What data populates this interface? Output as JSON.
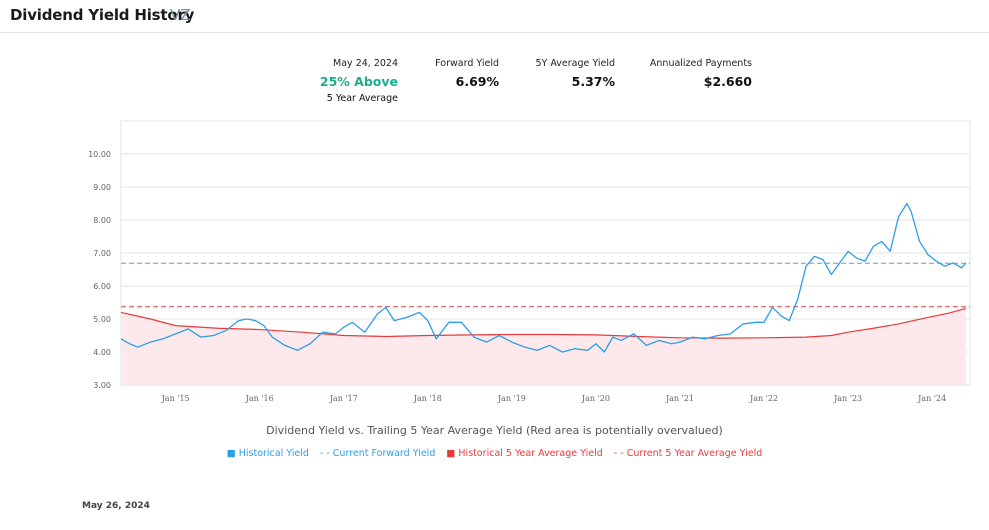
{
  "header": {
    "title": "Dividend Yield History",
    "ticker": "VZ"
  },
  "stats": {
    "date": "May 24, 2024",
    "above_value": "25% Above",
    "above_sub": "5 Year Average",
    "forward_label": "Forward Yield",
    "forward_value": "6.69%",
    "avg_label": "5Y Average Yield",
    "avg_value": "5.37%",
    "payments_label": "Annualized Payments",
    "payments_value": "$2.660"
  },
  "caption": "Dividend Yield vs. Trailing 5 Year Average Yield (Red area is potentially overvalued)",
  "legend": {
    "historical": "Historical Yield",
    "current_forward": "- - Current Forward Yield",
    "hist_avg": "Historical 5 Year Average Yield",
    "current_avg": "- - Current 5 Year Average Yield"
  },
  "footer_date": "May 26, 2024",
  "colors": {
    "historical": "#2b9fe6",
    "average": "#e43b3b",
    "fill": "#fde8ec",
    "forward_line": "#5b9be6"
  },
  "chart_data": {
    "type": "line",
    "ylim": [
      3.0,
      11.0
    ],
    "yticks": [
      "3.00",
      "4.00",
      "5.00",
      "6.00",
      "7.00",
      "8.00",
      "9.00",
      "10.00"
    ],
    "xlim": [
      2014.35,
      2024.45
    ],
    "xticks": [
      {
        "label": "Jan '15",
        "x": 2015.0
      },
      {
        "label": "Jan '16",
        "x": 2016.0
      },
      {
        "label": "Jan '17",
        "x": 2017.0
      },
      {
        "label": "Jan '18",
        "x": 2018.0
      },
      {
        "label": "Jan '19",
        "x": 2019.0
      },
      {
        "label": "Jan '20",
        "x": 2020.0
      },
      {
        "label": "Jan '21",
        "x": 2021.0
      },
      {
        "label": "Jan '22",
        "x": 2022.0
      },
      {
        "label": "Jan '23",
        "x": 2023.0
      },
      {
        "label": "Jan '24",
        "x": 2024.0
      }
    ],
    "current_forward_yield": 6.69,
    "current_5y_avg_yield": 5.37,
    "series": [
      {
        "name": "Historical Yield",
        "x": [
          2014.35,
          2014.45,
          2014.55,
          2014.7,
          2014.85,
          2015.0,
          2015.15,
          2015.3,
          2015.45,
          2015.6,
          2015.75,
          2015.85,
          2015.95,
          2016.05,
          2016.15,
          2016.3,
          2016.45,
          2016.6,
          2016.75,
          2016.9,
          2017.0,
          2017.1,
          2017.25,
          2017.4,
          2017.5,
          2017.6,
          2017.75,
          2017.9,
          2018.0,
          2018.1,
          2018.25,
          2018.4,
          2018.55,
          2018.7,
          2018.85,
          2019.0,
          2019.15,
          2019.3,
          2019.45,
          2019.6,
          2019.75,
          2019.9,
          2020.0,
          2020.1,
          2020.2,
          2020.3,
          2020.45,
          2020.6,
          2020.75,
          2020.9,
          2021.0,
          2021.15,
          2021.3,
          2021.45,
          2021.6,
          2021.75,
          2021.9,
          2022.0,
          2022.1,
          2022.2,
          2022.3,
          2022.4,
          2022.5,
          2022.6,
          2022.7,
          2022.8,
          2022.9,
          2023.0,
          2023.1,
          2023.2,
          2023.3,
          2023.4,
          2023.5,
          2023.6,
          2023.7,
          2023.75,
          2023.85,
          2023.95,
          2024.05,
          2024.15,
          2024.25,
          2024.35,
          2024.4
        ],
        "y": [
          4.4,
          4.25,
          4.15,
          4.3,
          4.4,
          4.55,
          4.7,
          4.45,
          4.5,
          4.65,
          4.95,
          5.0,
          4.95,
          4.8,
          4.45,
          4.2,
          4.05,
          4.25,
          4.6,
          4.55,
          4.75,
          4.9,
          4.6,
          5.15,
          5.35,
          4.95,
          5.05,
          5.2,
          4.95,
          4.4,
          4.9,
          4.9,
          4.45,
          4.3,
          4.5,
          4.3,
          4.15,
          4.05,
          4.2,
          4.0,
          4.1,
          4.05,
          4.25,
          4.0,
          4.45,
          4.35,
          4.55,
          4.2,
          4.35,
          4.25,
          4.3,
          4.45,
          4.4,
          4.5,
          4.55,
          4.85,
          4.9,
          4.9,
          5.35,
          5.1,
          4.95,
          5.6,
          6.6,
          6.9,
          6.8,
          6.35,
          6.7,
          7.05,
          6.85,
          6.75,
          7.2,
          7.35,
          7.05,
          8.1,
          8.5,
          8.25,
          7.35,
          6.95,
          6.75,
          6.6,
          6.7,
          6.55,
          6.7
        ]
      },
      {
        "name": "Historical 5 Year Average Yield",
        "x": [
          2014.35,
          2014.7,
          2015.0,
          2015.5,
          2016.0,
          2016.5,
          2017.0,
          2017.5,
          2018.0,
          2018.5,
          2019.0,
          2019.5,
          2020.0,
          2020.5,
          2021.0,
          2021.5,
          2022.0,
          2022.5,
          2022.8,
          2023.0,
          2023.3,
          2023.6,
          2023.9,
          2024.2,
          2024.4
        ],
        "y": [
          5.2,
          5.0,
          4.8,
          4.72,
          4.68,
          4.6,
          4.5,
          4.47,
          4.5,
          4.52,
          4.53,
          4.53,
          4.52,
          4.47,
          4.43,
          4.42,
          4.43,
          4.45,
          4.5,
          4.6,
          4.72,
          4.85,
          5.02,
          5.18,
          5.32
        ]
      }
    ]
  }
}
